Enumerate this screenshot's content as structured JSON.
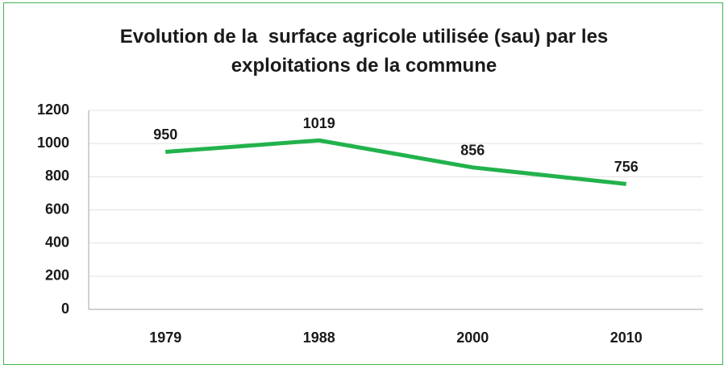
{
  "chart_data": {
    "type": "line",
    "title": "Evolution de la  surface agricole utilisée (sau) par les exploitations de la commune",
    "categories": [
      "1979",
      "1988",
      "2000",
      "2010"
    ],
    "values": [
      950,
      1019,
      856,
      756
    ],
    "color": "#22b24c",
    "ylim": [
      0,
      1200
    ],
    "yticks": [
      0,
      200,
      400,
      600,
      800,
      1000,
      1200
    ],
    "grid": true
  }
}
